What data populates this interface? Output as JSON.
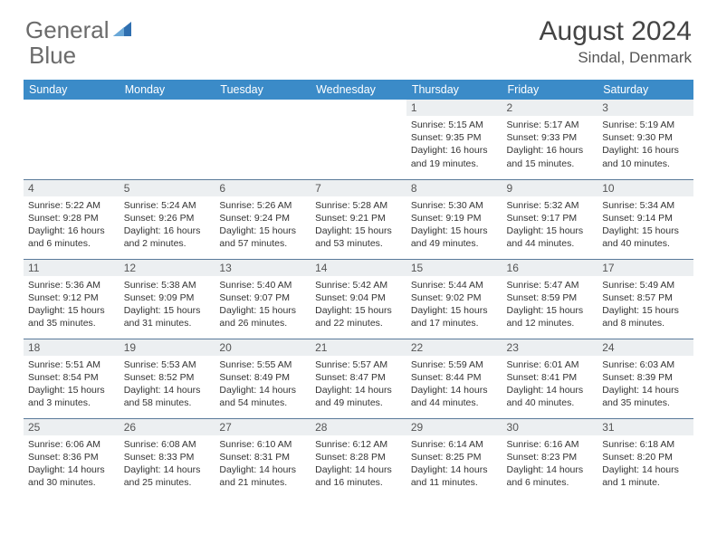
{
  "brand": {
    "word1": "General",
    "word2": "Blue",
    "text_color_gray": "#6b6b6b",
    "text_color_blue": "#3b7bbf",
    "icon_color": "#2f6fb0"
  },
  "title": {
    "month_year": "August 2024",
    "location": "Sindal, Denmark"
  },
  "styling": {
    "header_bg": "#3b8bc8",
    "header_text": "#ffffff",
    "daynum_bg": "#eceff1",
    "daynum_text": "#555555",
    "cell_text": "#333333",
    "week_divider": "#5a7a9a",
    "page_bg": "#ffffff",
    "body_font_size": 10.5,
    "header_font_size": 12.5,
    "title_font_size": 30,
    "location_font_size": 17
  },
  "weekdays": [
    "Sunday",
    "Monday",
    "Tuesday",
    "Wednesday",
    "Thursday",
    "Friday",
    "Saturday"
  ],
  "weeks": [
    [
      {
        "n": "",
        "sr": "",
        "ss": "",
        "dl": ""
      },
      {
        "n": "",
        "sr": "",
        "ss": "",
        "dl": ""
      },
      {
        "n": "",
        "sr": "",
        "ss": "",
        "dl": ""
      },
      {
        "n": "",
        "sr": "",
        "ss": "",
        "dl": ""
      },
      {
        "n": "1",
        "sr": "Sunrise: 5:15 AM",
        "ss": "Sunset: 9:35 PM",
        "dl": "Daylight: 16 hours and 19 minutes."
      },
      {
        "n": "2",
        "sr": "Sunrise: 5:17 AM",
        "ss": "Sunset: 9:33 PM",
        "dl": "Daylight: 16 hours and 15 minutes."
      },
      {
        "n": "3",
        "sr": "Sunrise: 5:19 AM",
        "ss": "Sunset: 9:30 PM",
        "dl": "Daylight: 16 hours and 10 minutes."
      }
    ],
    [
      {
        "n": "4",
        "sr": "Sunrise: 5:22 AM",
        "ss": "Sunset: 9:28 PM",
        "dl": "Daylight: 16 hours and 6 minutes."
      },
      {
        "n": "5",
        "sr": "Sunrise: 5:24 AM",
        "ss": "Sunset: 9:26 PM",
        "dl": "Daylight: 16 hours and 2 minutes."
      },
      {
        "n": "6",
        "sr": "Sunrise: 5:26 AM",
        "ss": "Sunset: 9:24 PM",
        "dl": "Daylight: 15 hours and 57 minutes."
      },
      {
        "n": "7",
        "sr": "Sunrise: 5:28 AM",
        "ss": "Sunset: 9:21 PM",
        "dl": "Daylight: 15 hours and 53 minutes."
      },
      {
        "n": "8",
        "sr": "Sunrise: 5:30 AM",
        "ss": "Sunset: 9:19 PM",
        "dl": "Daylight: 15 hours and 49 minutes."
      },
      {
        "n": "9",
        "sr": "Sunrise: 5:32 AM",
        "ss": "Sunset: 9:17 PM",
        "dl": "Daylight: 15 hours and 44 minutes."
      },
      {
        "n": "10",
        "sr": "Sunrise: 5:34 AM",
        "ss": "Sunset: 9:14 PM",
        "dl": "Daylight: 15 hours and 40 minutes."
      }
    ],
    [
      {
        "n": "11",
        "sr": "Sunrise: 5:36 AM",
        "ss": "Sunset: 9:12 PM",
        "dl": "Daylight: 15 hours and 35 minutes."
      },
      {
        "n": "12",
        "sr": "Sunrise: 5:38 AM",
        "ss": "Sunset: 9:09 PM",
        "dl": "Daylight: 15 hours and 31 minutes."
      },
      {
        "n": "13",
        "sr": "Sunrise: 5:40 AM",
        "ss": "Sunset: 9:07 PM",
        "dl": "Daylight: 15 hours and 26 minutes."
      },
      {
        "n": "14",
        "sr": "Sunrise: 5:42 AM",
        "ss": "Sunset: 9:04 PM",
        "dl": "Daylight: 15 hours and 22 minutes."
      },
      {
        "n": "15",
        "sr": "Sunrise: 5:44 AM",
        "ss": "Sunset: 9:02 PM",
        "dl": "Daylight: 15 hours and 17 minutes."
      },
      {
        "n": "16",
        "sr": "Sunrise: 5:47 AM",
        "ss": "Sunset: 8:59 PM",
        "dl": "Daylight: 15 hours and 12 minutes."
      },
      {
        "n": "17",
        "sr": "Sunrise: 5:49 AM",
        "ss": "Sunset: 8:57 PM",
        "dl": "Daylight: 15 hours and 8 minutes."
      }
    ],
    [
      {
        "n": "18",
        "sr": "Sunrise: 5:51 AM",
        "ss": "Sunset: 8:54 PM",
        "dl": "Daylight: 15 hours and 3 minutes."
      },
      {
        "n": "19",
        "sr": "Sunrise: 5:53 AM",
        "ss": "Sunset: 8:52 PM",
        "dl": "Daylight: 14 hours and 58 minutes."
      },
      {
        "n": "20",
        "sr": "Sunrise: 5:55 AM",
        "ss": "Sunset: 8:49 PM",
        "dl": "Daylight: 14 hours and 54 minutes."
      },
      {
        "n": "21",
        "sr": "Sunrise: 5:57 AM",
        "ss": "Sunset: 8:47 PM",
        "dl": "Daylight: 14 hours and 49 minutes."
      },
      {
        "n": "22",
        "sr": "Sunrise: 5:59 AM",
        "ss": "Sunset: 8:44 PM",
        "dl": "Daylight: 14 hours and 44 minutes."
      },
      {
        "n": "23",
        "sr": "Sunrise: 6:01 AM",
        "ss": "Sunset: 8:41 PM",
        "dl": "Daylight: 14 hours and 40 minutes."
      },
      {
        "n": "24",
        "sr": "Sunrise: 6:03 AM",
        "ss": "Sunset: 8:39 PM",
        "dl": "Daylight: 14 hours and 35 minutes."
      }
    ],
    [
      {
        "n": "25",
        "sr": "Sunrise: 6:06 AM",
        "ss": "Sunset: 8:36 PM",
        "dl": "Daylight: 14 hours and 30 minutes."
      },
      {
        "n": "26",
        "sr": "Sunrise: 6:08 AM",
        "ss": "Sunset: 8:33 PM",
        "dl": "Daylight: 14 hours and 25 minutes."
      },
      {
        "n": "27",
        "sr": "Sunrise: 6:10 AM",
        "ss": "Sunset: 8:31 PM",
        "dl": "Daylight: 14 hours and 21 minutes."
      },
      {
        "n": "28",
        "sr": "Sunrise: 6:12 AM",
        "ss": "Sunset: 8:28 PM",
        "dl": "Daylight: 14 hours and 16 minutes."
      },
      {
        "n": "29",
        "sr": "Sunrise: 6:14 AM",
        "ss": "Sunset: 8:25 PM",
        "dl": "Daylight: 14 hours and 11 minutes."
      },
      {
        "n": "30",
        "sr": "Sunrise: 6:16 AM",
        "ss": "Sunset: 8:23 PM",
        "dl": "Daylight: 14 hours and 6 minutes."
      },
      {
        "n": "31",
        "sr": "Sunrise: 6:18 AM",
        "ss": "Sunset: 8:20 PM",
        "dl": "Daylight: 14 hours and 1 minute."
      }
    ]
  ]
}
